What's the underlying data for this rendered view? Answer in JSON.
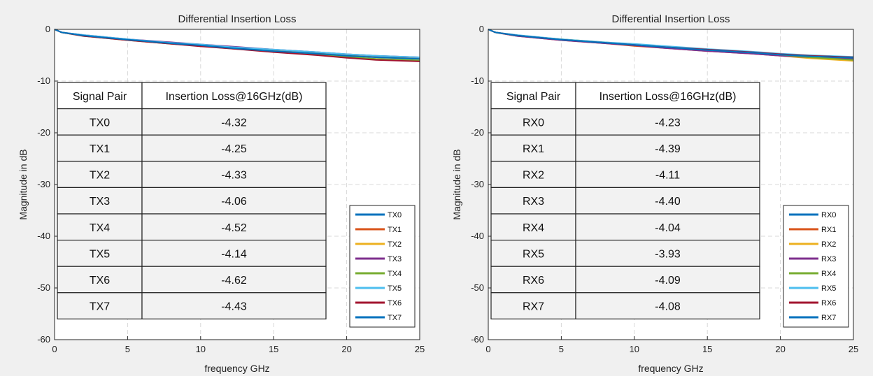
{
  "chart_data": [
    {
      "type": "line",
      "title": "Differential Insertion Loss",
      "xlabel": "frequency GHz",
      "ylabel": "Magnitude in dB",
      "xlim": [
        0,
        25
      ],
      "ylim": [
        -60,
        0
      ],
      "xticks": [
        "0",
        "5",
        "10",
        "15",
        "20",
        "25"
      ],
      "yticks": [
        "0",
        "-10",
        "-20",
        "-30",
        "-40",
        "-50",
        "-60"
      ],
      "grid": true,
      "legend": "bottom-right",
      "series": [
        {
          "name": "TX0",
          "color": "#0072bd",
          "x": [
            0,
            0.5,
            2,
            5,
            8,
            10,
            12,
            15,
            18,
            20,
            22,
            25
          ],
          "y": [
            0,
            -0.6,
            -1.2,
            -2.0,
            -2.7,
            -3.1,
            -3.5,
            -4.1,
            -4.6,
            -5.0,
            -5.3,
            -5.6
          ]
        },
        {
          "name": "TX1",
          "color": "#d95319",
          "x": [
            0,
            0.5,
            2,
            5,
            8,
            10,
            12,
            15,
            18,
            20,
            22,
            25
          ],
          "y": [
            0,
            -0.6,
            -1.2,
            -2.0,
            -2.6,
            -3.0,
            -3.4,
            -4.0,
            -4.5,
            -4.9,
            -5.2,
            -5.5
          ]
        },
        {
          "name": "TX2",
          "color": "#edb120",
          "x": [
            0,
            0.5,
            2,
            5,
            8,
            10,
            12,
            15,
            18,
            20,
            22,
            25
          ],
          "y": [
            0,
            -0.6,
            -1.2,
            -2.0,
            -2.7,
            -3.1,
            -3.5,
            -4.1,
            -4.6,
            -5.0,
            -5.4,
            -5.7
          ]
        },
        {
          "name": "TX3",
          "color": "#7e2f8e",
          "x": [
            0,
            0.5,
            2,
            5,
            8,
            10,
            12,
            15,
            18,
            20,
            22,
            25
          ],
          "y": [
            0,
            -0.6,
            -1.1,
            -1.9,
            -2.5,
            -2.9,
            -3.3,
            -3.9,
            -4.4,
            -4.8,
            -5.1,
            -5.4
          ]
        },
        {
          "name": "TX4",
          "color": "#77ac30",
          "x": [
            0,
            0.5,
            2,
            5,
            8,
            10,
            12,
            15,
            18,
            20,
            22,
            25
          ],
          "y": [
            0,
            -0.6,
            -1.3,
            -2.1,
            -2.8,
            -3.2,
            -3.7,
            -4.3,
            -4.8,
            -5.3,
            -5.7,
            -6.0
          ]
        },
        {
          "name": "TX5",
          "color": "#4dbeee",
          "x": [
            0,
            0.5,
            2,
            5,
            8,
            10,
            12,
            15,
            18,
            20,
            22,
            25
          ],
          "y": [
            0,
            -0.6,
            -1.1,
            -1.9,
            -2.6,
            -2.9,
            -3.4,
            -3.9,
            -4.4,
            -4.8,
            -5.1,
            -5.4
          ]
        },
        {
          "name": "TX6",
          "color": "#a2142f",
          "x": [
            0,
            0.5,
            2,
            5,
            8,
            10,
            12,
            15,
            18,
            20,
            22,
            25
          ],
          "y": [
            0,
            -0.6,
            -1.3,
            -2.1,
            -2.8,
            -3.3,
            -3.7,
            -4.4,
            -5.0,
            -5.5,
            -5.9,
            -6.2
          ]
        },
        {
          "name": "TX7",
          "color": "#0072bd",
          "x": [
            0,
            0.5,
            2,
            5,
            8,
            10,
            12,
            15,
            18,
            20,
            22,
            25
          ],
          "y": [
            0,
            -0.6,
            -1.2,
            -2.0,
            -2.7,
            -3.1,
            -3.6,
            -4.2,
            -4.7,
            -5.1,
            -5.4,
            -5.7
          ]
        }
      ],
      "table": {
        "headers": [
          "Signal Pair",
          "Insertion Loss@16GHz(dB)"
        ],
        "rows": [
          [
            "TX0",
            "-4.32"
          ],
          [
            "TX1",
            "-4.25"
          ],
          [
            "TX2",
            "-4.33"
          ],
          [
            "TX3",
            "-4.06"
          ],
          [
            "TX4",
            "-4.52"
          ],
          [
            "TX5",
            "-4.14"
          ],
          [
            "TX6",
            "-4.62"
          ],
          [
            "TX7",
            "-4.43"
          ]
        ]
      }
    },
    {
      "type": "line",
      "title": "Differential Insertion Loss",
      "xlabel": "frequency GHz",
      "ylabel": "Magnitude in dB",
      "xlim": [
        0,
        25
      ],
      "ylim": [
        -60,
        0
      ],
      "xticks": [
        "0",
        "5",
        "10",
        "15",
        "20",
        "25"
      ],
      "yticks": [
        "0",
        "-10",
        "-20",
        "-30",
        "-40",
        "-50",
        "-60"
      ],
      "grid": true,
      "legend": "bottom-right",
      "series": [
        {
          "name": "RX0",
          "color": "#0072bd",
          "x": [
            0,
            0.5,
            2,
            5,
            8,
            10,
            12,
            15,
            18,
            20,
            22,
            25
          ],
          "y": [
            0,
            -0.6,
            -1.2,
            -2.0,
            -2.6,
            -3.0,
            -3.4,
            -4.0,
            -4.5,
            -4.9,
            -5.2,
            -5.5
          ]
        },
        {
          "name": "RX1",
          "color": "#d95319",
          "x": [
            0,
            0.5,
            2,
            5,
            8,
            10,
            12,
            15,
            18,
            20,
            22,
            25
          ],
          "y": [
            0,
            -0.6,
            -1.3,
            -2.1,
            -2.7,
            -3.2,
            -3.6,
            -4.2,
            -4.7,
            -5.1,
            -5.5,
            -5.8
          ]
        },
        {
          "name": "RX2",
          "color": "#edb120",
          "x": [
            0,
            0.5,
            2,
            5,
            8,
            10,
            12,
            15,
            18,
            20,
            22,
            25
          ],
          "y": [
            0,
            -0.6,
            -1.2,
            -2.0,
            -2.6,
            -3.0,
            -3.4,
            -4.0,
            -4.6,
            -5.1,
            -5.6,
            -6.1
          ]
        },
        {
          "name": "RX3",
          "color": "#7e2f8e",
          "x": [
            0,
            0.5,
            2,
            5,
            8,
            10,
            12,
            15,
            18,
            20,
            22,
            25
          ],
          "y": [
            0,
            -0.6,
            -1.3,
            -2.1,
            -2.7,
            -3.1,
            -3.6,
            -4.2,
            -4.7,
            -5.1,
            -5.4,
            -5.7
          ]
        },
        {
          "name": "RX4",
          "color": "#77ac30",
          "x": [
            0,
            0.5,
            2,
            5,
            8,
            10,
            12,
            15,
            18,
            20,
            22,
            25
          ],
          "y": [
            0,
            -0.6,
            -1.2,
            -1.9,
            -2.5,
            -2.9,
            -3.3,
            -3.9,
            -4.4,
            -4.9,
            -5.4,
            -5.9
          ]
        },
        {
          "name": "RX5",
          "color": "#4dbeee",
          "x": [
            0,
            0.5,
            2,
            5,
            8,
            10,
            12,
            15,
            18,
            20,
            22,
            25
          ],
          "y": [
            0,
            -0.6,
            -1.1,
            -1.9,
            -2.5,
            -2.8,
            -3.2,
            -3.8,
            -4.3,
            -4.7,
            -5.0,
            -5.3
          ]
        },
        {
          "name": "RX6",
          "color": "#a2142f",
          "x": [
            0,
            0.5,
            2,
            5,
            8,
            10,
            12,
            15,
            18,
            20,
            22,
            25
          ],
          "y": [
            0,
            -0.6,
            -1.2,
            -2.0,
            -2.6,
            -3.0,
            -3.4,
            -3.9,
            -4.4,
            -4.8,
            -5.1,
            -5.4
          ]
        },
        {
          "name": "RX7",
          "color": "#0072bd",
          "x": [
            0,
            0.5,
            2,
            5,
            8,
            10,
            12,
            15,
            18,
            20,
            22,
            25
          ],
          "y": [
            0,
            -0.6,
            -1.2,
            -2.0,
            -2.6,
            -3.0,
            -3.4,
            -4.0,
            -4.5,
            -4.9,
            -5.2,
            -5.5
          ]
        }
      ],
      "table": {
        "headers": [
          "Signal Pair",
          "Insertion Loss@16GHz(dB)"
        ],
        "rows": [
          [
            "RX0",
            "-4.23"
          ],
          [
            "RX1",
            "-4.39"
          ],
          [
            "RX2",
            "-4.11"
          ],
          [
            "RX3",
            "-4.40"
          ],
          [
            "RX4",
            "-4.04"
          ],
          [
            "RX5",
            "-3.93"
          ],
          [
            "RX6",
            "-4.09"
          ],
          [
            "RX7",
            "-4.08"
          ]
        ]
      }
    }
  ]
}
